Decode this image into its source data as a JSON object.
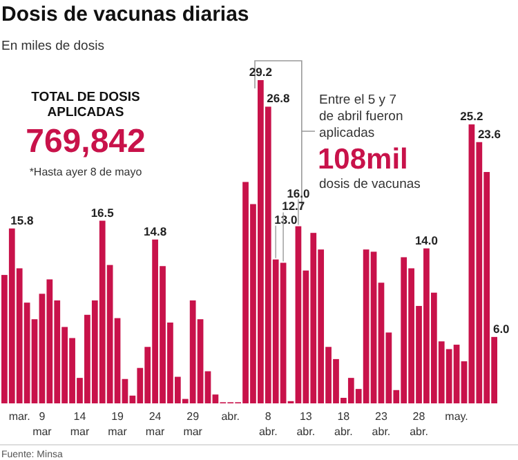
{
  "chart_data": {
    "type": "bar",
    "title": "Dosis de vacunas diarias",
    "subtitle": "En miles de dosis",
    "categories": [
      null,
      null,
      "mar.",
      null,
      null,
      "9 mar",
      null,
      null,
      null,
      null,
      "14 mar",
      null,
      null,
      null,
      null,
      "19 mar",
      null,
      null,
      null,
      null,
      "24 mar",
      null,
      null,
      null,
      null,
      "29 mar",
      null,
      null,
      null,
      null,
      "abr.",
      null,
      null,
      null,
      null,
      "8 abr.",
      null,
      null,
      null,
      null,
      "13 abr.",
      null,
      null,
      null,
      null,
      "18 abr.",
      null,
      null,
      null,
      null,
      "23 abr.",
      null,
      null,
      null,
      null,
      "28 abr.",
      null,
      null,
      null,
      null,
      "may.",
      null,
      null,
      null,
      null,
      null
    ],
    "values": [
      11.6,
      15.8,
      12.2,
      9.1,
      7.6,
      9.9,
      11.2,
      9.3,
      6.9,
      5.9,
      2.3,
      8.0,
      9.3,
      16.5,
      12.5,
      7.7,
      2.2,
      0.7,
      3.2,
      5.1,
      14.8,
      12.4,
      7.3,
      2.4,
      0.4,
      9.3,
      7.6,
      2.9,
      0.8,
      0.1,
      0.1,
      0.1,
      20.0,
      18.0,
      29.2,
      26.8,
      13.0,
      12.7,
      0.2,
      16.0,
      12.0,
      15.4,
      13.9,
      5.1,
      4.0,
      0.5,
      2.3,
      1.3,
      13.9,
      13.7,
      10.9,
      6.4,
      1.2,
      13.2,
      12.2,
      8.8,
      14.0,
      10.0,
      5.6,
      4.9,
      5.3,
      3.8,
      25.2,
      23.6,
      20.9,
      6.0
    ],
    "value_labels": [
      null,
      "15.8",
      null,
      null,
      null,
      null,
      null,
      null,
      null,
      null,
      null,
      null,
      null,
      "16.5",
      null,
      null,
      null,
      null,
      null,
      null,
      "14.8",
      null,
      null,
      null,
      null,
      null,
      null,
      null,
      null,
      null,
      null,
      null,
      null,
      null,
      "29.2",
      "26.8",
      "13.0",
      "12.7",
      null,
      "16.0",
      null,
      null,
      null,
      null,
      null,
      null,
      null,
      null,
      null,
      null,
      null,
      null,
      null,
      null,
      null,
      null,
      "14.0",
      null,
      null,
      null,
      null,
      null,
      "25.2",
      "23.6",
      null,
      "6.0"
    ],
    "color": "#c8124a",
    "annotations": [
      "TOTAL DE DOSIS APLICADAS",
      "769,842",
      "*Hasta ayer 8 de mayo",
      "Entre el 5 y 7 de abril fueron aplicadas",
      "108mil",
      "dosis de vacunas",
      "Fuente: Minsa"
    ]
  }
}
